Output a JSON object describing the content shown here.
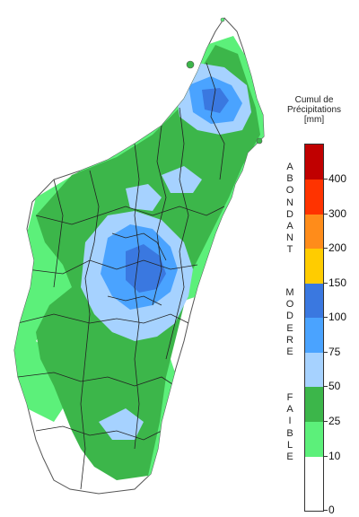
{
  "legend": {
    "title_line1": "Cumul de",
    "title_line2": "Précipitations",
    "unit": "[mm]",
    "categories": [
      {
        "label": "ABONDANT",
        "letters": [
          "A",
          "B",
          "O",
          "N",
          "D",
          "A",
          "N",
          "T"
        ]
      },
      {
        "label": "MODERE",
        "letters": [
          "M",
          "O",
          "D",
          "E",
          "R",
          "E"
        ]
      },
      {
        "label": "FAIBLE",
        "letters": [
          "F",
          "A",
          "I",
          "B",
          "L",
          "E"
        ]
      }
    ],
    "classes": [
      {
        "min": 400,
        "color": "#c00000"
      },
      {
        "min": 300,
        "max": 400,
        "color": "#ff3300"
      },
      {
        "min": 200,
        "max": 300,
        "color": "#ff8c1a"
      },
      {
        "min": 150,
        "max": 200,
        "color": "#ffcc00"
      },
      {
        "min": 100,
        "max": 150,
        "color": "#3a78e0"
      },
      {
        "min": 75,
        "max": 100,
        "color": "#4aa3ff"
      },
      {
        "min": 50,
        "max": 75,
        "color": "#a6d2ff"
      },
      {
        "min": 25,
        "max": 50,
        "color": "#3cb64a"
      },
      {
        "min": 10,
        "max": 25,
        "color": "#5cf07a"
      },
      {
        "min": 0,
        "max": 10,
        "color": "#ffffff"
      }
    ],
    "tick_labels": [
      "400",
      "300",
      "200",
      "150",
      "100",
      "75",
      "50",
      "25",
      "10",
      "0"
    ]
  },
  "map_colors": {
    "land": "#ffffff",
    "faible_low": "#5cf07a",
    "faible": "#3cb64a",
    "modere_low": "#a6d2ff",
    "modere": "#4aa3ff",
    "modere_high": "#3a78e0",
    "boundary": "#222222",
    "coast": "#555555"
  }
}
